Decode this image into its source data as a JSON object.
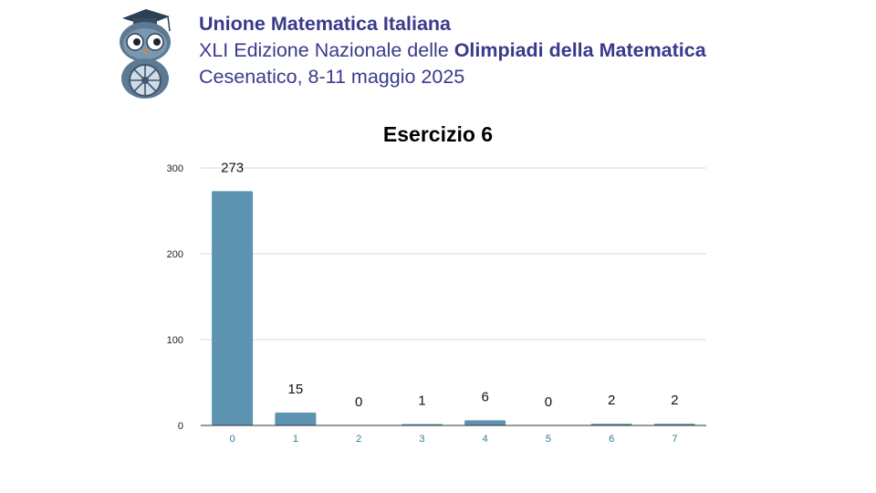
{
  "header": {
    "org": "Unione Matematica Italiana",
    "edition_prefix": "XLI Edizione Nazionale delle ",
    "edition_bold": "Olimpiadi della Matematica",
    "place_date": "Cesenatico, 8-11 maggio 2025"
  },
  "logo": {
    "icon": "owl-mascot-icon"
  },
  "chart_data": {
    "type": "bar",
    "title": "Esercizio 6",
    "xlabel": "",
    "ylabel": "",
    "categories": [
      "0",
      "1",
      "2",
      "3",
      "4",
      "5",
      "6",
      "7"
    ],
    "values": [
      273,
      15,
      0,
      1,
      6,
      0,
      2,
      2
    ],
    "data_labels": [
      "273",
      "15",
      "0",
      "1",
      "6",
      "0",
      "2",
      "2"
    ],
    "ylim": [
      0,
      300
    ],
    "yticks": [
      0,
      100,
      200,
      300
    ],
    "ytick_labels": [
      "0",
      "100",
      "200",
      "300"
    ],
    "grid": true,
    "legend": "none",
    "colors": {
      "bar": "#5b93b0",
      "grid": "#d9d9d9",
      "xtick": "#2e7a91",
      "ytick": "#222222",
      "label": "#111111"
    }
  }
}
